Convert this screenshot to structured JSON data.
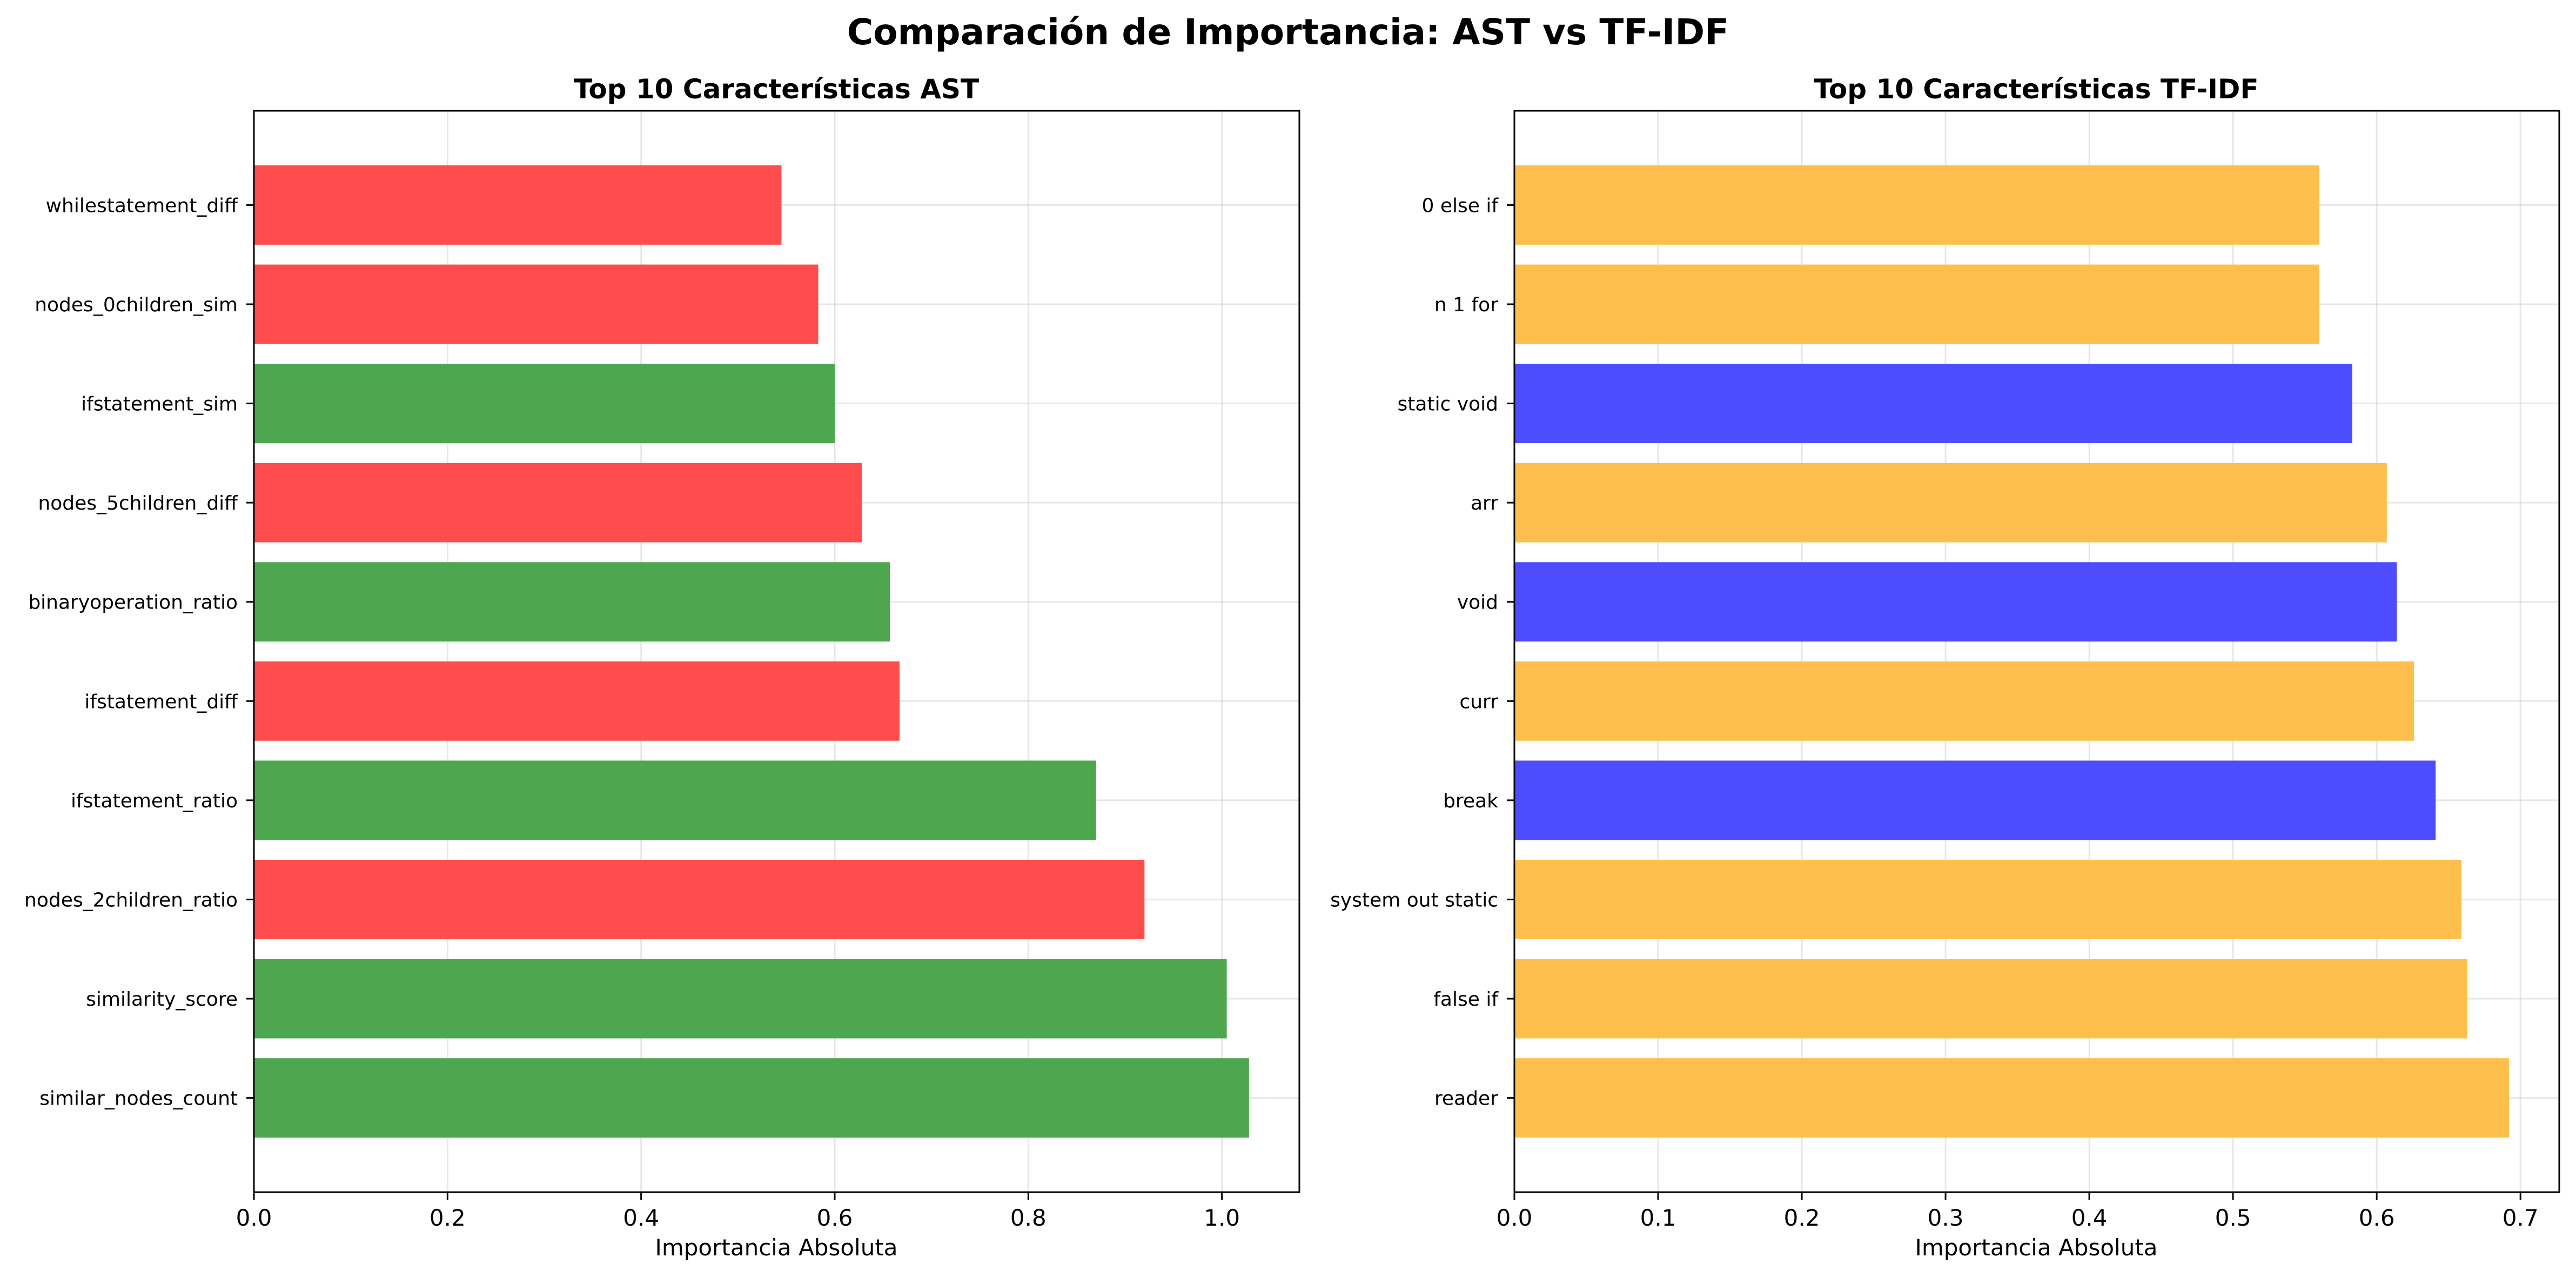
{
  "figure": {
    "suptitle": "Comparación de Importancia: AST vs TF-IDF"
  },
  "chart_data": [
    {
      "type": "bar",
      "orientation": "horizontal",
      "title": "Top 10 Características AST",
      "xlabel": "Importancia Absoluta",
      "ylabel": "",
      "xlim": [
        0,
        1.08
      ],
      "xticks": [
        0.0,
        0.2,
        0.4,
        0.6,
        0.8,
        1.0
      ],
      "xtick_labels": [
        "0.0",
        "0.2",
        "0.4",
        "0.6",
        "0.8",
        "1.0"
      ],
      "grid": true,
      "categories": [
        "similar_nodes_count",
        "similarity_score",
        "nodes_2children_ratio",
        "ifstatement_ratio",
        "ifstatement_diff",
        "binaryoperation_ratio",
        "nodes_5children_diff",
        "ifstatement_sim",
        "nodes_0children_sim",
        "whilestatement_diff"
      ],
      "values": [
        1.028,
        1.005,
        0.92,
        0.87,
        0.667,
        0.657,
        0.628,
        0.6,
        0.583,
        0.545
      ],
      "colors": [
        "#4ea74e",
        "#4ea74e",
        "#ff4d4d",
        "#4ea74e",
        "#ff4d4d",
        "#4ea74e",
        "#ff4d4d",
        "#4ea74e",
        "#ff4d4d",
        "#ff4d4d"
      ]
    },
    {
      "type": "bar",
      "orientation": "horizontal",
      "title": "Top 10 Características TF-IDF",
      "xlabel": "Importancia Absoluta",
      "ylabel": "",
      "xlim": [
        0,
        0.727
      ],
      "xticks": [
        0.0,
        0.1,
        0.2,
        0.3,
        0.4,
        0.5,
        0.6,
        0.7
      ],
      "xtick_labels": [
        "0.0",
        "0.1",
        "0.2",
        "0.3",
        "0.4",
        "0.5",
        "0.6",
        "0.7"
      ],
      "grid": true,
      "categories": [
        "reader",
        "false if",
        "system out static",
        "break",
        "curr",
        "void",
        "arr",
        "static void",
        "n 1 for",
        "0 else if"
      ],
      "values": [
        0.692,
        0.663,
        0.659,
        0.641,
        0.626,
        0.614,
        0.607,
        0.583,
        0.56,
        0.56
      ],
      "colors": [
        "#ffbf4d",
        "#ffbf4d",
        "#ffbf4d",
        "#4d4dff",
        "#ffbf4d",
        "#4d4dff",
        "#ffbf4d",
        "#4d4dff",
        "#ffbf4d",
        "#ffbf4d"
      ]
    }
  ]
}
